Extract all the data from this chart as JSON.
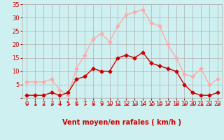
{
  "x": [
    0,
    1,
    2,
    3,
    4,
    5,
    6,
    7,
    8,
    9,
    10,
    11,
    12,
    13,
    14,
    15,
    16,
    17,
    18,
    19,
    20,
    21,
    22,
    23
  ],
  "wind_avg": [
    1,
    1,
    1,
    2,
    1,
    2,
    7,
    8,
    11,
    10,
    10,
    15,
    16,
    15,
    17,
    13,
    12,
    11,
    10,
    5,
    2,
    1,
    1,
    2
  ],
  "wind_gust": [
    6,
    6,
    6,
    7,
    3,
    1,
    11,
    16,
    22,
    24,
    21,
    27,
    31,
    32,
    33,
    28,
    27,
    20,
    15,
    9,
    8,
    11,
    5,
    7
  ],
  "xlabel": "Vent moyen/en rafales ( km/h )",
  "ylim": [
    0,
    35
  ],
  "yticks": [
    0,
    5,
    10,
    15,
    20,
    25,
    30,
    35
  ],
  "xticks": [
    0,
    1,
    2,
    3,
    4,
    5,
    6,
    7,
    8,
    9,
    10,
    11,
    12,
    13,
    14,
    15,
    16,
    17,
    18,
    19,
    20,
    21,
    22,
    23
  ],
  "bg_color": "#cff0f0",
  "grid_color": "#b0b0b0",
  "avg_color": "#cc0000",
  "gust_color": "#ffaaaa",
  "marker_size": 2.5,
  "line_width": 1.0,
  "xlabel_color": "#cc0000",
  "xlabel_fontsize": 7,
  "tick_color": "#cc0000",
  "tick_fontsize": 6,
  "ytick_fontsize": 6,
  "arrow_color": "#cc0000",
  "hline_color": "#cc0000"
}
